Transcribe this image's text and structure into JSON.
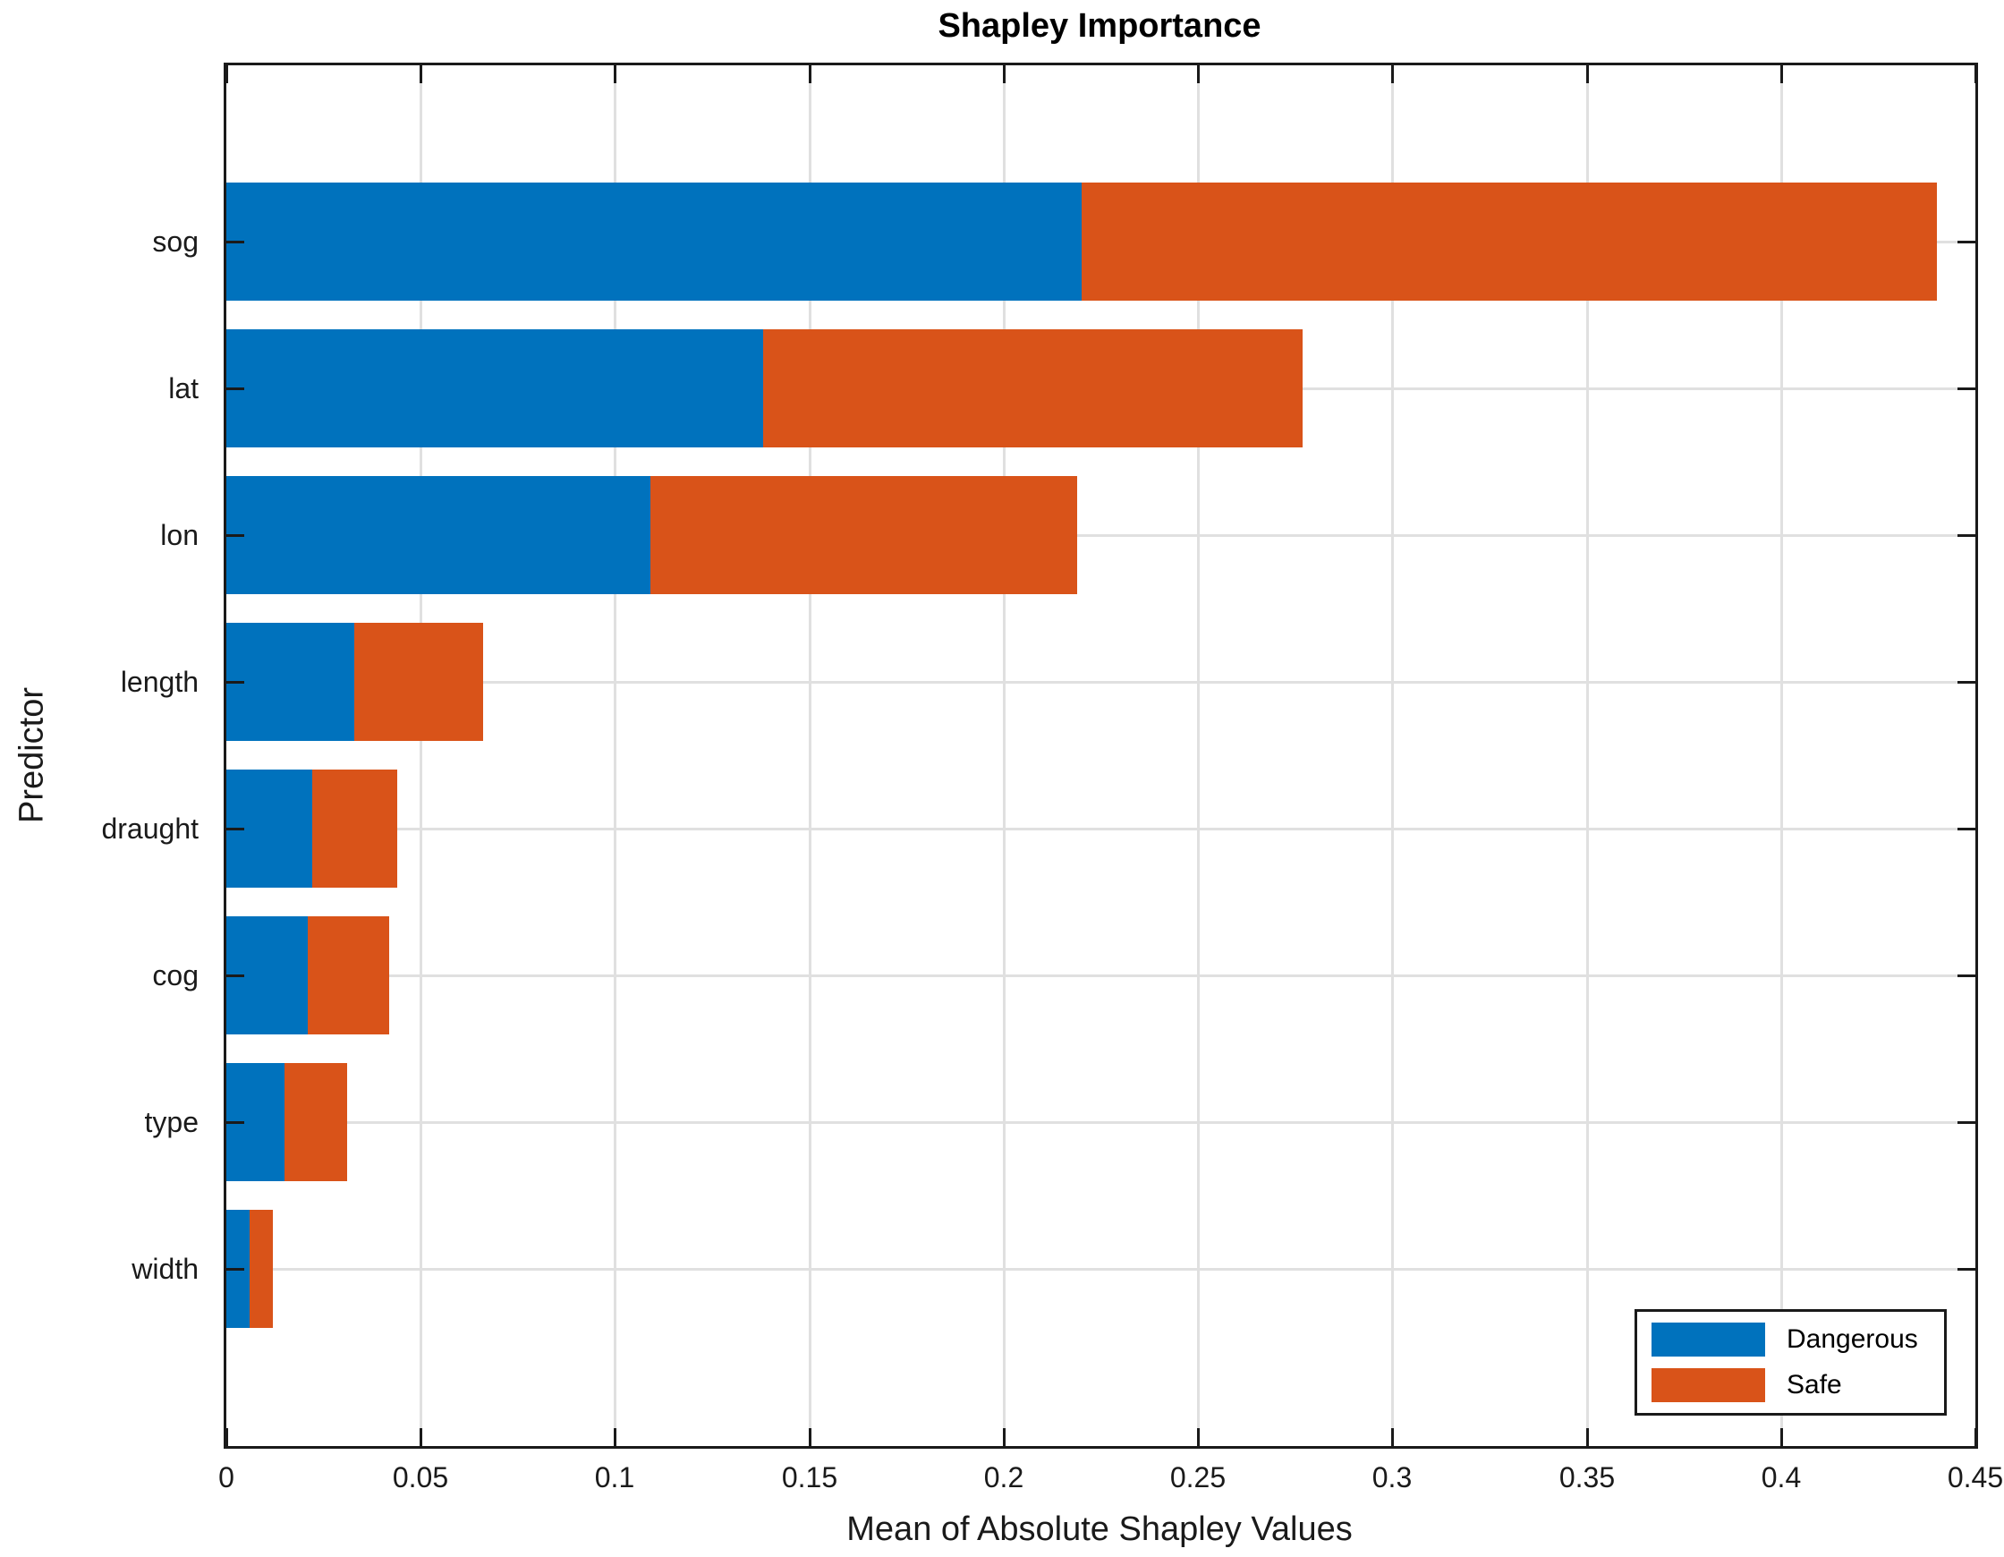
{
  "title": "Shapley Importance",
  "colors": {
    "dangerous": "#0072BD",
    "safe": "#D95319",
    "grid": "#E0E0E0",
    "axis": "#1A1A1A"
  },
  "legend": {
    "entries": [
      {
        "label": "Dangerous",
        "color": "#0072BD"
      },
      {
        "label": "Safe",
        "color": "#D95319"
      }
    ]
  },
  "chart_data": {
    "type": "bar",
    "orientation": "horizontal",
    "stacked": true,
    "title": "Shapley Importance",
    "xlabel": "Mean of Absolute Shapley Values",
    "ylabel": "Predictor",
    "categories": [
      "sog",
      "lat",
      "lon",
      "length",
      "draught",
      "cog",
      "type",
      "width"
    ],
    "series": [
      {
        "name": "Dangerous",
        "color": "#0072BD",
        "values": [
          0.22,
          0.138,
          0.109,
          0.033,
          0.022,
          0.021,
          0.015,
          0.006
        ]
      },
      {
        "name": "Safe",
        "color": "#D95319",
        "values": [
          0.22,
          0.139,
          0.11,
          0.033,
          0.022,
          0.021,
          0.016,
          0.006
        ]
      }
    ],
    "totals": [
      0.44,
      0.277,
      0.219,
      0.066,
      0.044,
      0.042,
      0.031,
      0.012
    ],
    "xlim": [
      0,
      0.45
    ],
    "xticks": [
      0,
      0.05,
      0.1,
      0.15,
      0.2,
      0.25,
      0.3,
      0.35,
      0.4,
      0.45
    ],
    "xtick_labels": [
      "0",
      "0.05",
      "0.1",
      "0.15",
      "0.2",
      "0.25",
      "0.3",
      "0.35",
      "0.4",
      "0.45"
    ],
    "grid": true,
    "legend_position": "bottom-right"
  }
}
